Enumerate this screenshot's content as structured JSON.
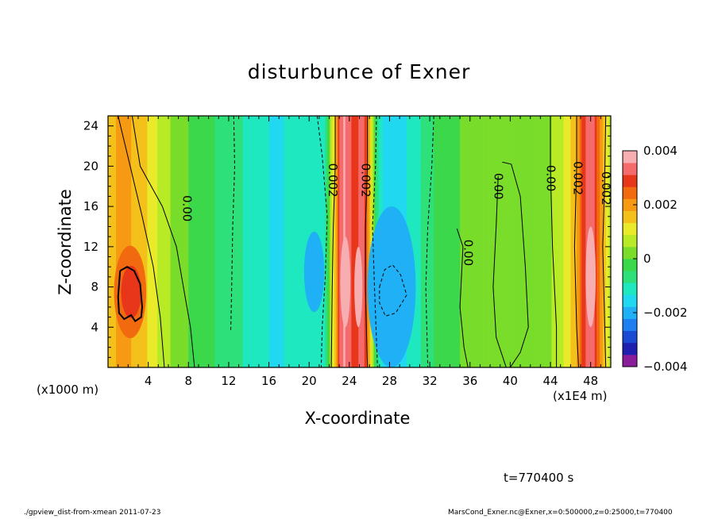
{
  "page": {
    "title": "disturbunce of Exner",
    "time_label": "t=770400 s",
    "footer_left": "./gpview_dist-from-xmean  2011-07-23",
    "footer_right": "MarsCond_Exner.nc@Exner,x=0:500000,z=0:25000,t=770400"
  },
  "chart_data": {
    "type": "heatmap",
    "title": "disturbunce of Exner",
    "xlabel": "X-coordinate",
    "ylabel": "Z-coordinate",
    "x_unit_label": "(x1000 m)",
    "extra_unit_label": "(x1E4 m)",
    "xlim": [
      0,
      50
    ],
    "ylim": [
      0,
      25
    ],
    "x_ticks": [
      4,
      8,
      12,
      16,
      20,
      24,
      28,
      32,
      36,
      40,
      44,
      48
    ],
    "x_tick_labels": [
      "4",
      "8",
      "12",
      "16",
      "20",
      "24",
      "28",
      "32",
      "36",
      "40",
      "44",
      "48"
    ],
    "y_ticks": [
      4,
      8,
      12,
      16,
      20,
      24
    ],
    "y_tick_labels": [
      "4",
      "8",
      "12",
      "16",
      "20",
      "24"
    ],
    "colorbar": {
      "range": [
        -0.004,
        0.004
      ],
      "tick_values": [
        0.004,
        0.002,
        0,
        -0.002,
        -0.004
      ],
      "tick_labels": [
        "0.004",
        "0.002",
        "0",
        "−0.002",
        "−0.004"
      ],
      "colors": [
        "#8a1d9a",
        "#1f1fb0",
        "#1a4ad4",
        "#1f7ef0",
        "#1fb0f5",
        "#20d8f0",
        "#1fe8c0",
        "#2ee07a",
        "#3ad84a",
        "#79dd2a",
        "#b8ea26",
        "#e8ea2a",
        "#f4c01a",
        "#f59a12",
        "#f26a10",
        "#e8361a",
        "#f56a6a",
        "#f7aeb0"
      ]
    },
    "bands_x_to_value": [
      [
        0.0,
        0.0014
      ],
      [
        0.5,
        0.0017
      ],
      [
        1.2,
        0.0019
      ],
      [
        2.2,
        0.0018
      ],
      [
        3.4,
        0.0016
      ],
      [
        4.6,
        0.001
      ],
      [
        6.0,
        0.0005
      ],
      [
        7.5,
        0.0001
      ],
      [
        9.0,
        -0.0002
      ],
      [
        11.0,
        -0.0005
      ],
      [
        13.0,
        -0.0008
      ],
      [
        15.0,
        -0.0012
      ],
      [
        16.5,
        -0.0014
      ],
      [
        18.0,
        -0.0013
      ],
      [
        19.5,
        -0.0012
      ],
      [
        20.8,
        -0.0012
      ],
      [
        21.6,
        -0.0009
      ],
      [
        22.2,
        0.0006
      ],
      [
        22.6,
        0.0015
      ],
      [
        23.0,
        0.0032
      ],
      [
        23.5,
        0.0036
      ],
      [
        24.0,
        0.0034
      ],
      [
        24.5,
        0.0026
      ],
      [
        25.1,
        0.0034
      ],
      [
        25.6,
        0.003
      ],
      [
        26.1,
        0.0014
      ],
      [
        26.6,
        -0.0004
      ],
      [
        27.2,
        -0.0013
      ],
      [
        28.0,
        -0.0015
      ],
      [
        29.0,
        -0.0015
      ],
      [
        30.2,
        -0.0012
      ],
      [
        31.4,
        -0.0008
      ],
      [
        32.8,
        -0.0003
      ],
      [
        34.5,
        -0.0001
      ],
      [
        36.0,
        0.0002
      ],
      [
        38.0,
        0.0003
      ],
      [
        40.0,
        0.0004
      ],
      [
        42.0,
        0.0003
      ],
      [
        44.0,
        0.0004
      ],
      [
        45.6,
        0.001
      ],
      [
        46.6,
        0.0018
      ],
      [
        47.2,
        0.0028
      ],
      [
        47.8,
        0.0034
      ],
      [
        48.3,
        0.0032
      ],
      [
        48.8,
        0.0024
      ],
      [
        49.3,
        0.0016
      ],
      [
        50.0,
        0.0006
      ]
    ],
    "blobs": [
      {
        "x": 2.2,
        "z": 7.5,
        "rx": 1.6,
        "rz": 4.6,
        "value": 0.0026
      },
      {
        "x": 2.3,
        "z": 7.5,
        "rx": 1.0,
        "rz": 2.6,
        "value": 0.0028
      },
      {
        "x": 28.2,
        "z": 8.0,
        "rx": 2.4,
        "rz": 8.0,
        "value": -0.0018
      },
      {
        "x": 28.0,
        "z": 7.8,
        "rx": 1.2,
        "rz": 2.8,
        "value": -0.002
      },
      {
        "x": 20.5,
        "z": 9.5,
        "rx": 1.0,
        "rz": 4.0,
        "value": -0.0018
      },
      {
        "x": 23.6,
        "z": 8.5,
        "rx": 0.5,
        "rz": 4.5,
        "value": 0.004
      },
      {
        "x": 24.9,
        "z": 8.0,
        "rx": 0.4,
        "rz": 4.0,
        "value": 0.004
      },
      {
        "x": 48.0,
        "z": 9.0,
        "rx": 0.5,
        "rz": 5.0,
        "value": 0.004
      }
    ],
    "contours": {
      "solid": [
        {
          "label": "0.00",
          "label_x": 7.8,
          "label_z": 15.8,
          "points": [
            [
              2.4,
              25
            ],
            [
              3.2,
              20
            ],
            [
              5.4,
              16
            ],
            [
              6.8,
              12
            ],
            [
              7.5,
              8
            ],
            [
              8.2,
              4
            ],
            [
              8.6,
              0
            ]
          ]
        },
        {
          "label": "",
          "points": [
            [
              1.0,
              25
            ],
            [
              2.2,
              20
            ],
            [
              3.4,
              15
            ],
            [
              4.5,
              10
            ],
            [
              5.2,
              5
            ],
            [
              5.6,
              0
            ]
          ]
        },
        {
          "label": "0.002",
          "label_x": 22.3,
          "label_z": 18.6,
          "points": [
            [
              22.6,
              25
            ],
            [
              22.6,
              20
            ],
            [
              22.4,
              14
            ],
            [
              22.3,
              8
            ],
            [
              22.2,
              0
            ]
          ]
        },
        {
          "label": "0.002",
          "label_x": 25.6,
          "label_z": 18.6,
          "points": [
            [
              25.8,
              25
            ],
            [
              25.8,
              20
            ],
            [
              25.6,
              14
            ],
            [
              25.6,
              8
            ],
            [
              25.8,
              0
            ]
          ]
        },
        {
          "label": "0.00",
          "label_x": 35.8,
          "label_z": 11.4,
          "points": [
            [
              34.7,
              13.8
            ],
            [
              35.3,
              12
            ],
            [
              35.0,
              6
            ],
            [
              35.4,
              2
            ],
            [
              35.8,
              0
            ]
          ]
        },
        {
          "label": "0.00",
          "label_x": 38.8,
          "label_z": 18.0,
          "points": [
            [
              38.8,
              19
            ],
            [
              38.6,
              14
            ],
            [
              38.3,
              8
            ],
            [
              38.6,
              3
            ],
            [
              39.6,
              0
            ]
          ]
        },
        {
          "label": "",
          "points": [
            [
              39.2,
              20.4
            ],
            [
              40.1,
              20.2
            ],
            [
              41.0,
              17
            ],
            [
              41.5,
              10
            ],
            [
              41.8,
              4
            ],
            [
              41.0,
              1.5
            ],
            [
              40.0,
              0
            ]
          ]
        },
        {
          "label": "0.00",
          "label_x": 44.0,
          "label_z": 18.8,
          "points": [
            [
              44.0,
              25
            ],
            [
              44.0,
              20
            ],
            [
              44.2,
              12
            ],
            [
              44.6,
              4
            ],
            [
              44.6,
              0
            ]
          ]
        },
        {
          "label": "0.002",
          "label_x": 46.7,
          "label_z": 18.8,
          "points": [
            [
              46.6,
              25
            ],
            [
              46.6,
              20
            ],
            [
              46.4,
              12
            ],
            [
              46.6,
              4
            ],
            [
              46.8,
              0
            ]
          ]
        },
        {
          "label": "0.002",
          "label_x": 49.5,
          "label_z": 17.8,
          "points": [
            [
              49.5,
              25
            ],
            [
              49.4,
              19
            ],
            [
              49.2,
              12
            ],
            [
              49.4,
              4
            ],
            [
              49.5,
              0
            ]
          ]
        }
      ],
      "dashed": [
        {
          "label": "",
          "points": [
            [
              12.5,
              25
            ],
            [
              12.6,
              20
            ],
            [
              12.4,
              14
            ],
            [
              12.3,
              8
            ],
            [
              12.2,
              3.5
            ]
          ]
        },
        {
          "label": "",
          "points": [
            [
              20.8,
              25
            ],
            [
              21.3,
              21
            ],
            [
              21.8,
              15
            ],
            [
              21.6,
              9
            ],
            [
              21.3,
              4
            ],
            [
              21.2,
              0
            ]
          ]
        },
        {
          "label": "",
          "points": [
            [
              26.7,
              25
            ],
            [
              26.6,
              20
            ],
            [
              26.3,
              14
            ],
            [
              26.5,
              8
            ],
            [
              26.8,
              0
            ]
          ]
        },
        {
          "label": "",
          "points": [
            [
              32.4,
              25
            ],
            [
              32.2,
              20
            ],
            [
              31.8,
              14
            ],
            [
              31.6,
              8
            ],
            [
              31.8,
              0
            ]
          ]
        },
        {
          "label": "",
          "points": [
            [
              27.0,
              8.0
            ],
            [
              27.5,
              9.7
            ],
            [
              28.3,
              10.2
            ],
            [
              29.1,
              9.2
            ],
            [
              29.7,
              7.2
            ],
            [
              28.6,
              5.4
            ],
            [
              27.6,
              5.1
            ],
            [
              27.0,
              6.4
            ],
            [
              27.0,
              8.0
            ]
          ]
        }
      ],
      "bold_solid": [
        {
          "label": "",
          "points": [
            [
              1.2,
              9.6
            ],
            [
              1.9,
              10.0
            ],
            [
              2.6,
              9.6
            ],
            [
              3.2,
              8.3
            ],
            [
              3.4,
              6.0
            ],
            [
              3.3,
              5.0
            ],
            [
              2.7,
              4.6
            ],
            [
              2.3,
              5.2
            ],
            [
              1.6,
              4.8
            ],
            [
              1.1,
              5.4
            ],
            [
              1.0,
              7.0
            ],
            [
              1.2,
              9.6
            ]
          ]
        }
      ]
    }
  }
}
